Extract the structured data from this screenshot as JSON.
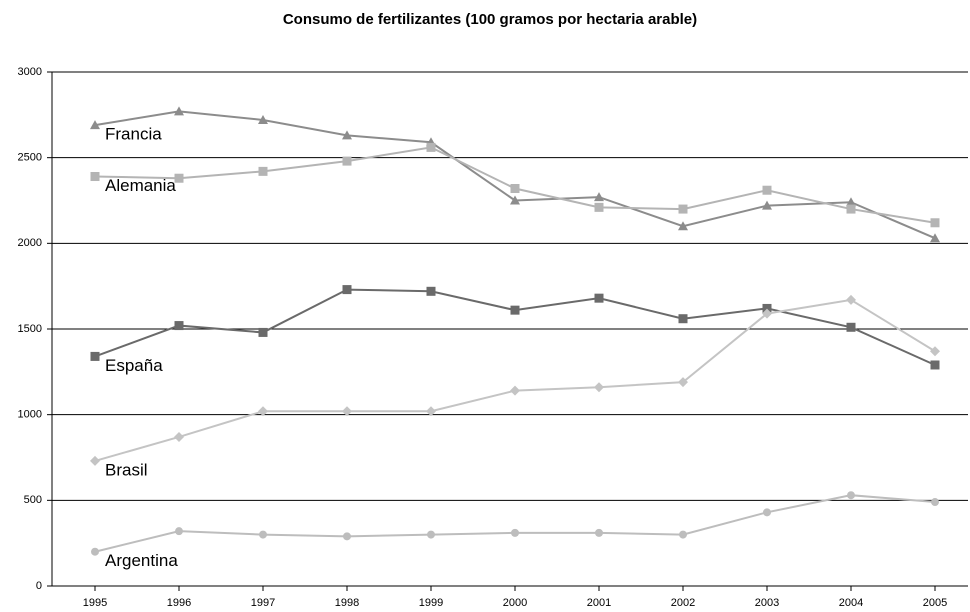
{
  "chart_data": {
    "type": "line",
    "title": "Consumo de fertilizantes (100 gramos por hectaria arable)",
    "categories": [
      "1995",
      "1996",
      "1997",
      "1998",
      "1999",
      "2000",
      "2001",
      "2002",
      "2003",
      "2004",
      "2005"
    ],
    "ylim": [
      0,
      3000
    ],
    "yticks": [
      0,
      500,
      1000,
      1500,
      2000,
      2500,
      3000
    ],
    "grid": true,
    "series": [
      {
        "name": "Francia",
        "color": "#8c8c8c",
        "marker": "triangle",
        "values": [
          2690,
          2770,
          2720,
          2630,
          2590,
          2250,
          2270,
          2100,
          2220,
          2240,
          2030
        ]
      },
      {
        "name": "Alemania",
        "color": "#b4b4b4",
        "marker": "square",
        "values": [
          2390,
          2380,
          2420,
          2480,
          2560,
          2320,
          2210,
          2200,
          2310,
          2200,
          2120
        ]
      },
      {
        "name": "España",
        "color": "#6a6a6a",
        "marker": "square",
        "values": [
          1340,
          1520,
          1480,
          1730,
          1720,
          1610,
          1680,
          1560,
          1620,
          1510,
          1290
        ]
      },
      {
        "name": "Brasil",
        "color": "#c4c4c4",
        "marker": "diamond",
        "values": [
          730,
          870,
          1020,
          1020,
          1020,
          1140,
          1160,
          1190,
          1590,
          1670,
          1370
        ]
      },
      {
        "name": "Argentina",
        "color": "#bdbdbd",
        "marker": "circle",
        "values": [
          200,
          320,
          300,
          290,
          300,
          310,
          310,
          300,
          430,
          530,
          490
        ]
      }
    ]
  }
}
